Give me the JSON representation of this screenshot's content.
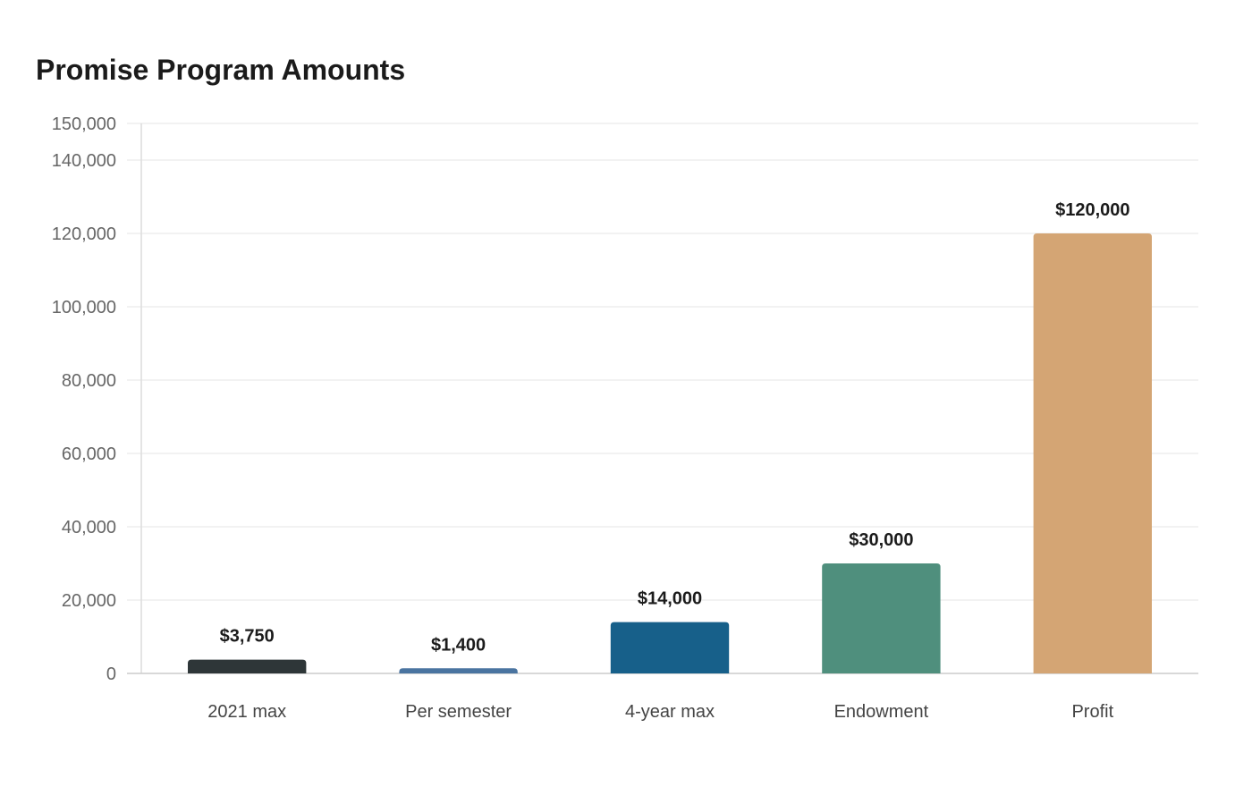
{
  "chart_data": {
    "type": "bar",
    "title": "Promise Program Amounts",
    "categories": [
      "2021 max",
      "Per semester",
      "4-year max",
      "Endowment",
      "Profit"
    ],
    "values": [
      3750,
      1400,
      14000,
      30000,
      120000
    ],
    "data_labels": [
      "$3,750",
      "$1,400",
      "$14,000",
      "$30,000",
      "$120,000"
    ],
    "bar_colors": [
      "#2e3638",
      "#4a74a0",
      "#17608a",
      "#4f8f7d",
      "#d4a574"
    ],
    "yticks": [
      0,
      20000,
      40000,
      60000,
      80000,
      100000,
      120000,
      140000,
      150000
    ],
    "ytick_labels": [
      "0",
      "20,000",
      "40,000",
      "60,000",
      "80,000",
      "100,000",
      "120,000",
      "140,000",
      "150,000"
    ],
    "xlabel": "",
    "ylabel": "",
    "ylim": [
      0,
      150000
    ],
    "grid": true,
    "legend": "none"
  }
}
